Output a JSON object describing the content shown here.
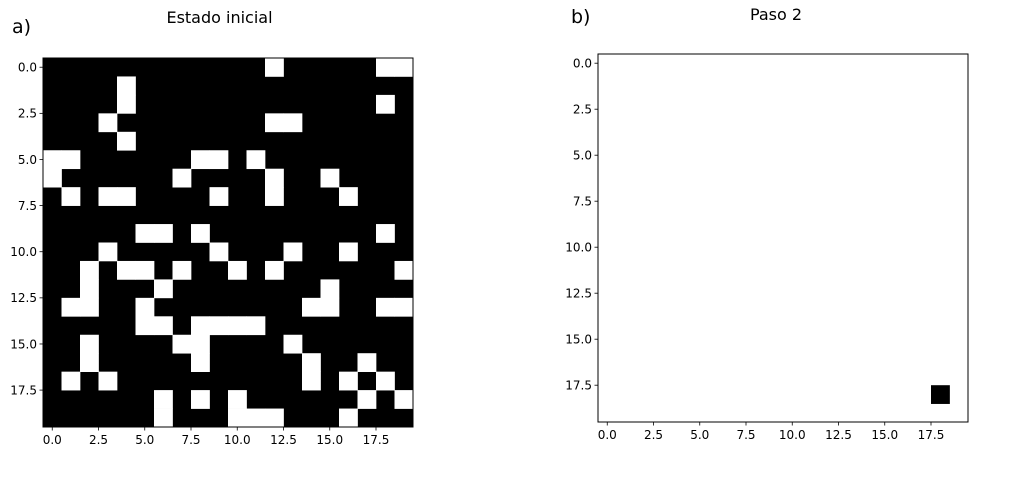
{
  "chart_data": [
    {
      "type": "heatmap",
      "panel_label": "a)",
      "title": "Estado inicial",
      "xlabel": "",
      "ylabel": "",
      "xlim": [
        -0.5,
        19.5
      ],
      "ylim": [
        19.5,
        -0.5
      ],
      "xticks": [
        0.0,
        2.5,
        5.0,
        7.5,
        10.0,
        12.5,
        15.0,
        17.5
      ],
      "yticks": [
        0.0,
        2.5,
        5.0,
        7.5,
        10.0,
        12.5,
        15.0,
        17.5
      ],
      "xtick_labels": [
        "0.0",
        "2.5",
        "5.0",
        "7.5",
        "10.0",
        "12.5",
        "15.0",
        "17.5"
      ],
      "ytick_labels": [
        "0.0",
        "2.5",
        "5.0",
        "7.5",
        "10.0",
        "12.5",
        "15.0",
        "17.5"
      ],
      "colormap": {
        "0": "#000000",
        "1": "#ffffff"
      },
      "grid": false,
      "rows": 20,
      "cols": 20,
      "white_cells": [
        [
          0,
          12
        ],
        [
          0,
          18
        ],
        [
          0,
          19
        ],
        [
          1,
          4
        ],
        [
          2,
          4
        ],
        [
          2,
          18
        ],
        [
          3,
          3
        ],
        [
          3,
          12
        ],
        [
          3,
          13
        ],
        [
          4,
          4
        ],
        [
          5,
          0
        ],
        [
          5,
          1
        ],
        [
          5,
          8
        ],
        [
          5,
          9
        ],
        [
          5,
          11
        ],
        [
          6,
          0
        ],
        [
          6,
          7
        ],
        [
          6,
          12
        ],
        [
          6,
          15
        ],
        [
          7,
          1
        ],
        [
          7,
          3
        ],
        [
          7,
          4
        ],
        [
          7,
          9
        ],
        [
          7,
          12
        ],
        [
          7,
          16
        ],
        [
          9,
          5
        ],
        [
          9,
          6
        ],
        [
          9,
          8
        ],
        [
          9,
          18
        ],
        [
          10,
          3
        ],
        [
          10,
          9
        ],
        [
          10,
          13
        ],
        [
          10,
          16
        ],
        [
          11,
          2
        ],
        [
          11,
          4
        ],
        [
          11,
          5
        ],
        [
          11,
          7
        ],
        [
          11,
          10
        ],
        [
          11,
          12
        ],
        [
          11,
          19
        ],
        [
          12,
          2
        ],
        [
          12,
          6
        ],
        [
          12,
          15
        ],
        [
          13,
          1
        ],
        [
          13,
          2
        ],
        [
          13,
          5
        ],
        [
          13,
          14
        ],
        [
          13,
          15
        ],
        [
          13,
          18
        ],
        [
          13,
          19
        ],
        [
          14,
          5
        ],
        [
          14,
          6
        ],
        [
          14,
          8
        ],
        [
          14,
          9
        ],
        [
          14,
          10
        ],
        [
          14,
          11
        ],
        [
          15,
          2
        ],
        [
          15,
          7
        ],
        [
          15,
          8
        ],
        [
          15,
          13
        ],
        [
          16,
          2
        ],
        [
          16,
          8
        ],
        [
          16,
          14
        ],
        [
          16,
          17
        ],
        [
          17,
          1
        ],
        [
          17,
          3
        ],
        [
          17,
          14
        ],
        [
          17,
          16
        ],
        [
          17,
          18
        ],
        [
          18,
          6
        ],
        [
          18,
          8
        ],
        [
          18,
          10
        ],
        [
          18,
          17
        ],
        [
          18,
          19
        ],
        [
          19,
          6
        ],
        [
          19,
          10
        ],
        [
          19,
          11
        ],
        [
          19,
          12
        ],
        [
          19,
          16
        ]
      ]
    },
    {
      "type": "heatmap",
      "panel_label": "b)",
      "title": "Paso 2",
      "xlabel": "",
      "ylabel": "",
      "xlim": [
        -0.5,
        19.5
      ],
      "ylim": [
        19.5,
        -0.5
      ],
      "xticks": [
        0.0,
        2.5,
        5.0,
        7.5,
        10.0,
        12.5,
        15.0,
        17.5
      ],
      "yticks": [
        0.0,
        2.5,
        5.0,
        7.5,
        10.0,
        12.5,
        15.0,
        17.5
      ],
      "xtick_labels": [
        "0.0",
        "2.5",
        "5.0",
        "7.5",
        "10.0",
        "12.5",
        "15.0",
        "17.5"
      ],
      "ytick_labels": [
        "0.0",
        "2.5",
        "5.0",
        "7.5",
        "10.0",
        "12.5",
        "15.0",
        "17.5"
      ],
      "colormap": {
        "0": "#ffffff",
        "1": "#000000"
      },
      "grid": false,
      "rows": 20,
      "cols": 20,
      "black_cells": [
        [
          18,
          18
        ]
      ]
    }
  ]
}
